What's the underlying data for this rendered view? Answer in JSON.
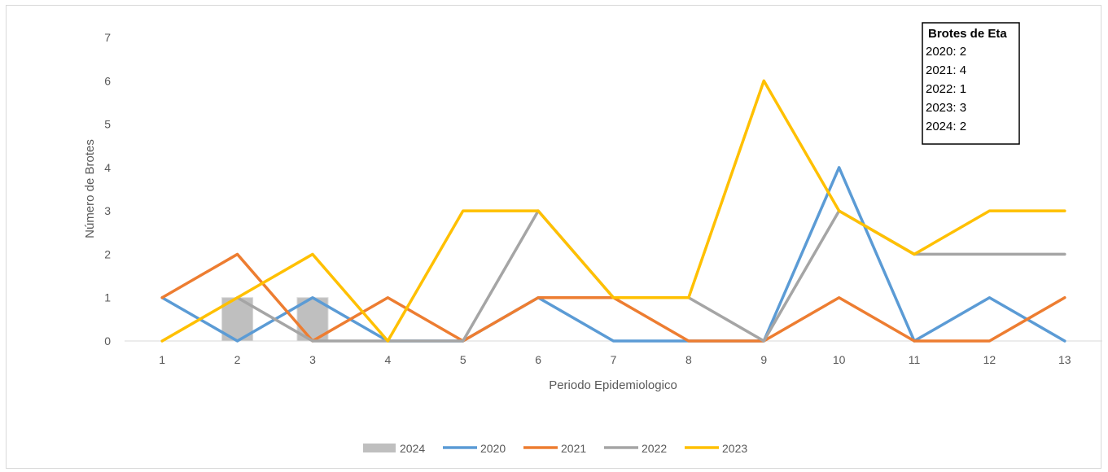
{
  "chart_data": {
    "type": "line",
    "xlabel": "Periodo Epidemiologico",
    "ylabel": "Número de Brotes",
    "categories": [
      "1",
      "2",
      "3",
      "4",
      "5",
      "6",
      "7",
      "8",
      "9",
      "10",
      "11",
      "12",
      "13"
    ],
    "ylim": [
      0,
      7
    ],
    "yticks": [
      0,
      1,
      2,
      3,
      4,
      5,
      6,
      7
    ],
    "grid": false,
    "legend_position": "bottom",
    "bar_series": {
      "name": "2024",
      "color": "#bfbfbf",
      "values": [
        null,
        1,
        1,
        null,
        null,
        null,
        null,
        null,
        null,
        null,
        null,
        null,
        null
      ]
    },
    "series": [
      {
        "name": "2020",
        "color": "#5b9bd5",
        "values": [
          1,
          0,
          1,
          0,
          0,
          1,
          0,
          0,
          0,
          4,
          0,
          1,
          0
        ]
      },
      {
        "name": "2021",
        "color": "#ed7d31",
        "values": [
          1,
          2,
          0,
          1,
          0,
          1,
          1,
          0,
          0,
          1,
          0,
          0,
          1
        ]
      },
      {
        "name": "2022",
        "color": "#a5a5a5",
        "values": [
          null,
          1,
          0,
          0,
          0,
          3,
          1,
          1,
          0,
          3,
          2,
          2,
          2
        ]
      },
      {
        "name": "2023",
        "color": "#ffc000",
        "values": [
          0,
          1,
          2,
          0,
          3,
          3,
          1,
          1,
          6,
          3,
          2,
          3,
          3
        ]
      }
    ],
    "legend": [
      "2024",
      "2020",
      "2021",
      "2022",
      "2023"
    ],
    "annotation": {
      "title": "Brotes de Eta",
      "lines": [
        "2020: 2",
        "2021: 4",
        "2022: 1",
        "2023: 3",
        "2024: 2"
      ]
    }
  }
}
